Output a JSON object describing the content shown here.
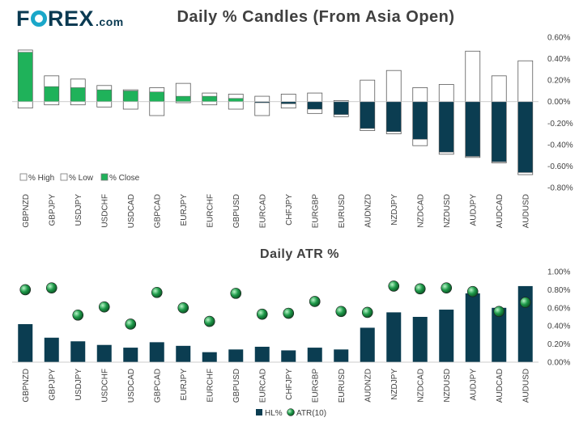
{
  "logo": {
    "part1": "F",
    "part2": "REX",
    "domain": ".com"
  },
  "colors": {
    "high": "#ffffff",
    "low": "#0b3d51",
    "close": "#1fb25a",
    "hl": "#0b3d51",
    "atr": "#1f9a4a",
    "edge": "#5a5a5a"
  },
  "chart_data": [
    {
      "type": "bar",
      "title": "Daily % Candles (From Asia Open)",
      "categories": [
        "GBPNZD",
        "GBPJPY",
        "USDJPY",
        "USDCHF",
        "USDCAD",
        "GBPCAD",
        "EURJPY",
        "EURCHF",
        "GBPUSD",
        "EURCAD",
        "CHFJPY",
        "EURGBP",
        "EURUSD",
        "AUDNZD",
        "NZDJPY",
        "NZDCAD",
        "NZDUSD",
        "AUDJPY",
        "AUDCAD",
        "AUDUSD"
      ],
      "series": [
        {
          "name": "% High",
          "values": [
            0.48,
            0.24,
            0.21,
            0.15,
            0.11,
            0.13,
            0.17,
            0.08,
            0.07,
            0.05,
            0.07,
            0.08,
            0.01,
            0.2,
            0.29,
            0.13,
            0.16,
            0.47,
            0.24,
            0.38
          ]
        },
        {
          "name": "% Low",
          "values": [
            -0.06,
            -0.03,
            -0.03,
            -0.05,
            -0.07,
            -0.13,
            -0.01,
            -0.03,
            -0.07,
            -0.13,
            -0.06,
            -0.11,
            -0.14,
            -0.27,
            -0.3,
            -0.41,
            -0.49,
            -0.52,
            -0.57,
            -0.68
          ]
        },
        {
          "name": "% Close",
          "values": [
            0.46,
            0.14,
            0.13,
            0.11,
            0.1,
            0.09,
            0.05,
            0.05,
            0.03,
            -0.01,
            -0.02,
            -0.07,
            -0.12,
            -0.25,
            -0.28,
            -0.35,
            -0.47,
            -0.51,
            -0.56,
            -0.66
          ]
        }
      ],
      "ylim": [
        -0.8,
        0.6
      ],
      "yticks": [
        "0.60%",
        "0.40%",
        "0.20%",
        "0.00%",
        "-0.20%",
        "-0.40%",
        "-0.60%",
        "-0.80%"
      ],
      "legend": [
        "% High",
        "% Low",
        "% Close"
      ],
      "legend_position": "bottom-left"
    },
    {
      "type": "bar",
      "title": "Daily ATR %",
      "categories": [
        "GBPNZD",
        "GBPJPY",
        "USDJPY",
        "USDCHF",
        "USDCAD",
        "GBPCAD",
        "EURJPY",
        "EURCHF",
        "GBPUSD",
        "EURCAD",
        "CHFJPY",
        "EURGBP",
        "EURUSD",
        "AUDNZD",
        "NZDJPY",
        "NZDCAD",
        "NZDUSD",
        "AUDJPY",
        "AUDCAD",
        "AUDUSD"
      ],
      "series": [
        {
          "name": "HL%",
          "values": [
            0.42,
            0.27,
            0.23,
            0.19,
            0.16,
            0.22,
            0.18,
            0.11,
            0.14,
            0.17,
            0.13,
            0.16,
            0.14,
            0.38,
            0.55,
            0.5,
            0.58,
            0.76,
            0.6,
            0.84
          ]
        },
        {
          "name": "ATR(10)",
          "values": [
            0.8,
            0.82,
            0.52,
            0.61,
            0.42,
            0.77,
            0.6,
            0.45,
            0.76,
            0.53,
            0.54,
            0.67,
            0.56,
            0.55,
            0.84,
            0.81,
            0.82,
            0.78,
            0.56,
            0.66
          ]
        }
      ],
      "ylim": [
        0,
        1.0
      ],
      "yticks": [
        "1.00%",
        "0.80%",
        "0.60%",
        "0.40%",
        "0.20%",
        "0.00%"
      ],
      "legend": [
        "HL%",
        "ATR(10)"
      ],
      "legend_position": "bottom-center"
    }
  ]
}
